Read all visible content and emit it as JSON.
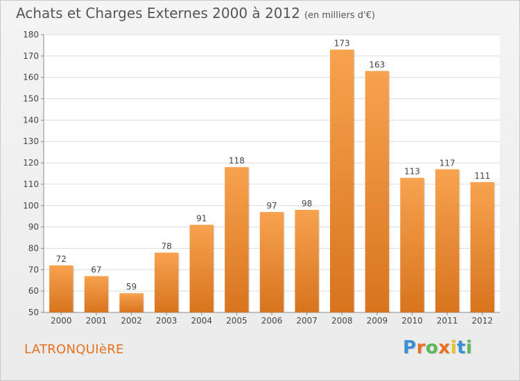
{
  "header": {
    "title": "Achats et Charges Externes 2000 à 2012",
    "unit": "(en milliers d'€)"
  },
  "commune": "LATRONQUIèRE",
  "logo": {
    "text": "Proxiti",
    "letters": [
      "P",
      "r",
      "o",
      "x",
      "i",
      "t",
      "i"
    ],
    "colors": [
      "#3a8fd8",
      "#e8701f",
      "#5cb85c",
      "#e8701f",
      "#e8c41f",
      "#3a8fd8",
      "#5cb85c"
    ]
  },
  "chart_data": {
    "type": "bar",
    "categories": [
      "2000",
      "2001",
      "2002",
      "2003",
      "2004",
      "2005",
      "2006",
      "2007",
      "2008",
      "2009",
      "2010",
      "2011",
      "2012"
    ],
    "values": [
      72,
      67,
      59,
      78,
      91,
      118,
      97,
      98,
      173,
      163,
      113,
      117,
      111
    ],
    "data_labels": [
      "72",
      "67",
      "59",
      "78",
      "91",
      "118",
      "97",
      "98",
      "173",
      "163",
      "113",
      "117",
      "111"
    ],
    "yticks": [
      50,
      60,
      70,
      80,
      90,
      100,
      110,
      120,
      130,
      140,
      150,
      160,
      170,
      180
    ],
    "ylim": [
      50,
      180
    ],
    "grid": true,
    "bar_color_top": "#f7a24f",
    "bar_color_bottom": "#d8741e"
  }
}
